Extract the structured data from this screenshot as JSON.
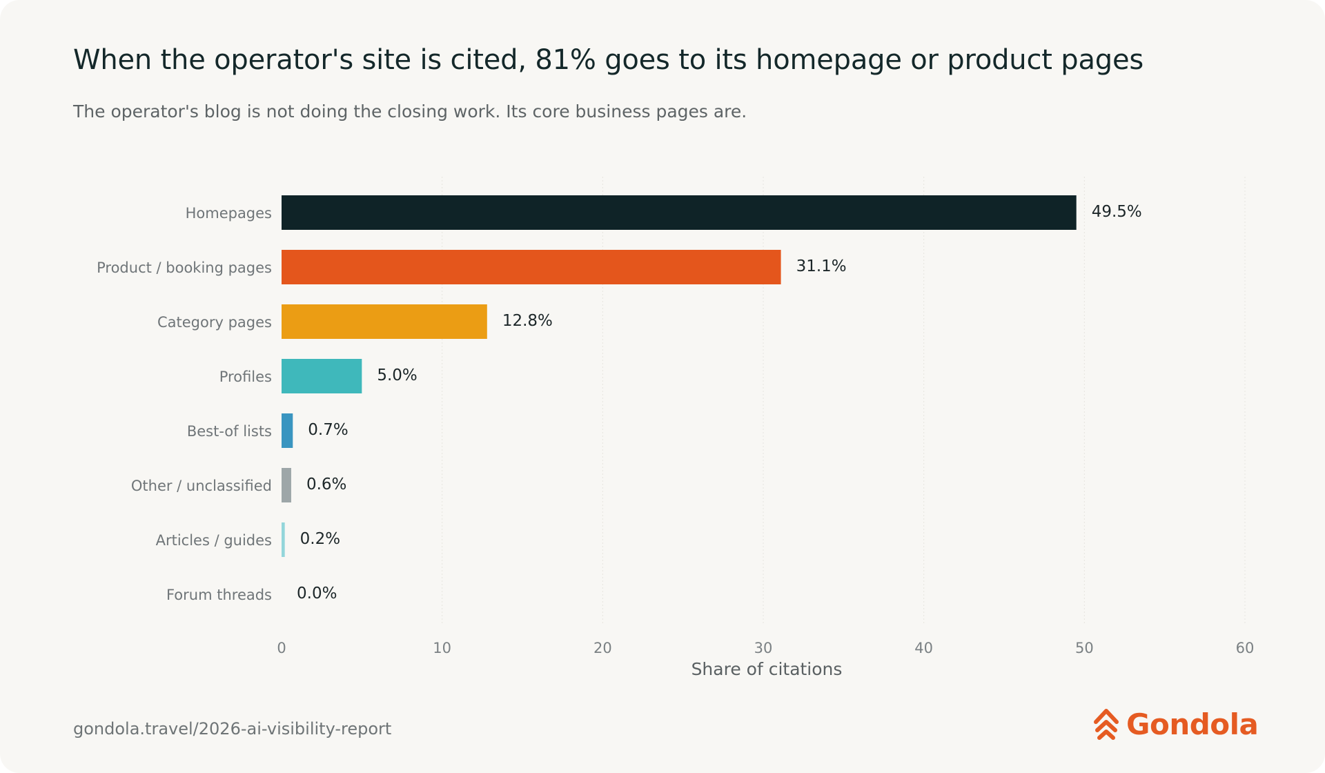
{
  "header": {
    "title": "When the operator's site is cited, 81% goes to its homepage or product pages",
    "subtitle": "The operator's blog is not doing the closing work. Its core business pages are."
  },
  "footer": {
    "url": "gondola.travel/2026-ai-visibility-report",
    "brand_name": "Gondola",
    "brand_icon": "gondola-logo-icon",
    "brand_color": "#e55b22"
  },
  "chart_data": {
    "type": "bar",
    "orientation": "horizontal",
    "categories": [
      "Homepages",
      "Product / booking pages",
      "Category pages",
      "Profiles",
      "Best-of lists",
      "Other / unclassified",
      "Articles / guides",
      "Forum threads"
    ],
    "values": [
      49.5,
      31.1,
      12.8,
      5.0,
      0.7,
      0.6,
      0.2,
      0.0
    ],
    "value_labels": [
      "49.5%",
      "31.1%",
      "12.8%",
      "5.0%",
      "0.7%",
      "0.6%",
      "0.2%",
      "0.0%"
    ],
    "colors": [
      "#0f2327",
      "#e4561c",
      "#eb9d14",
      "#3fb8bb",
      "#3a95c0",
      "#9da6a8",
      "#93d6da",
      "#cfd6d8"
    ],
    "xlabel": "Share of citations",
    "ylabel": "",
    "xlim": [
      0,
      60
    ],
    "xticks": [
      0,
      10,
      20,
      30,
      40,
      50,
      60
    ],
    "grid": "vertical"
  }
}
